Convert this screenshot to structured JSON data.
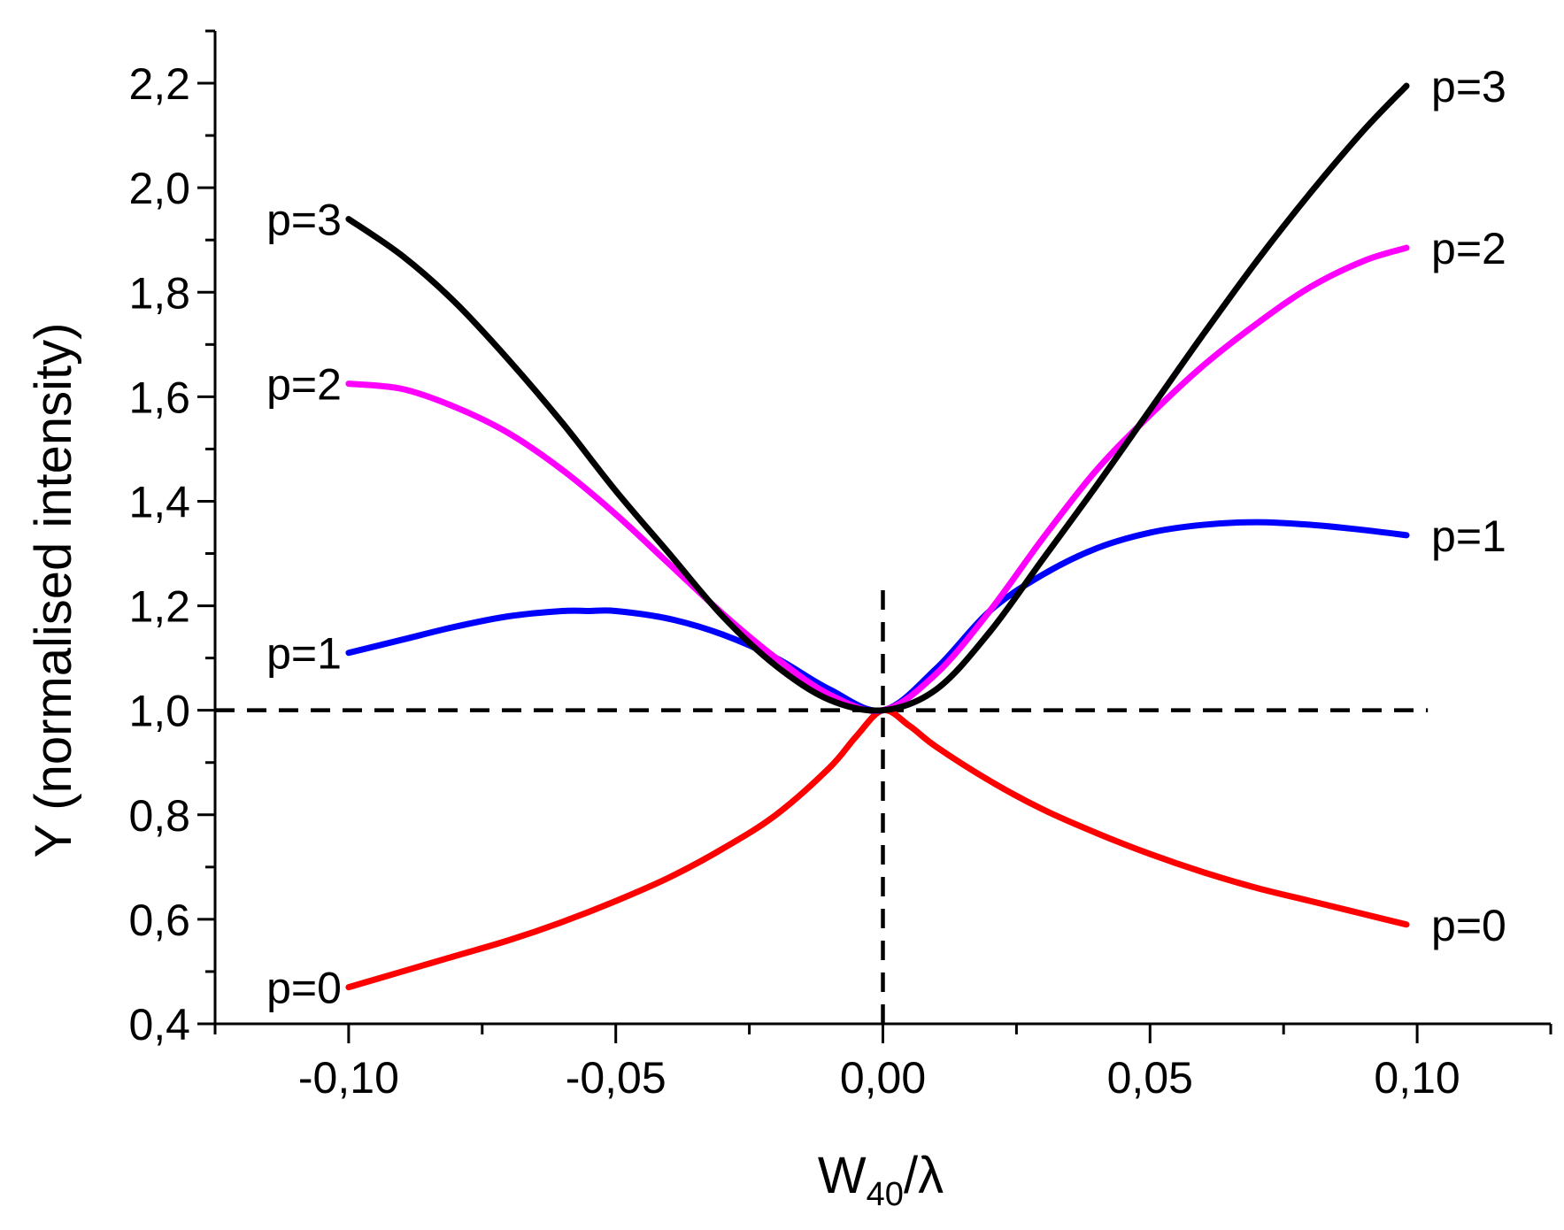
{
  "chart_data": {
    "type": "line",
    "xlabel": {
      "main": "W",
      "sub": "40",
      "rest": "/λ"
    },
    "ylabel": "Y (normalised intensity)",
    "xlim": [
      -0.125,
      0.125
    ],
    "ylim": [
      0.4,
      2.3
    ],
    "x_ticks": [
      -0.1,
      -0.05,
      0.0,
      0.05,
      0.1
    ],
    "x_tick_labels": [
      "-0,10",
      "-0,05",
      "0,00",
      "0,05",
      "0,10"
    ],
    "y_ticks": [
      0.4,
      0.6,
      0.8,
      1.0,
      1.2,
      1.4,
      1.6,
      1.8,
      2.0,
      2.2
    ],
    "y_tick_labels": [
      "0,4",
      "0,6",
      "0,8",
      "1,0",
      "1,2",
      "1,4",
      "1,6",
      "1,8",
      "2,0",
      "2,2"
    ],
    "grid": false,
    "reference_lines": [
      {
        "orientation": "horizontal",
        "value": 1.0,
        "style": "dashed",
        "from": -0.125,
        "to": 0.102
      },
      {
        "orientation": "vertical",
        "value": 0.0,
        "style": "dashed",
        "from": 0.4,
        "to": 1.23
      }
    ],
    "series": [
      {
        "name": "p=0",
        "color": "#ff0000",
        "x": [
          -0.1,
          -0.09,
          -0.08,
          -0.07,
          -0.06,
          -0.05,
          -0.04,
          -0.03,
          -0.02,
          -0.01,
          -0.005,
          0.0,
          0.005,
          0.01,
          0.02,
          0.03,
          0.04,
          0.05,
          0.06,
          0.07,
          0.08,
          0.09,
          0.098
        ],
        "y": [
          0.47,
          0.5,
          0.53,
          0.56,
          0.595,
          0.635,
          0.68,
          0.735,
          0.8,
          0.89,
          0.95,
          1.0,
          0.97,
          0.93,
          0.865,
          0.81,
          0.765,
          0.725,
          0.69,
          0.66,
          0.635,
          0.61,
          0.59
        ]
      },
      {
        "name": "p=1",
        "color": "#0000ff",
        "x": [
          -0.1,
          -0.09,
          -0.08,
          -0.07,
          -0.06,
          -0.055,
          -0.05,
          -0.04,
          -0.03,
          -0.02,
          -0.01,
          0.0,
          0.01,
          0.02,
          0.03,
          0.04,
          0.05,
          0.06,
          0.07,
          0.08,
          0.09,
          0.098
        ],
        "y": [
          1.11,
          1.135,
          1.16,
          1.18,
          1.19,
          1.19,
          1.19,
          1.175,
          1.145,
          1.1,
          1.04,
          1.0,
          1.08,
          1.19,
          1.26,
          1.31,
          1.34,
          1.355,
          1.36,
          1.355,
          1.345,
          1.335
        ]
      },
      {
        "name": "p=2",
        "color": "#ff00ff",
        "x": [
          -0.1,
          -0.09,
          -0.08,
          -0.07,
          -0.06,
          -0.05,
          -0.04,
          -0.03,
          -0.02,
          -0.01,
          0.0,
          0.01,
          0.02,
          0.03,
          0.04,
          0.05,
          0.06,
          0.07,
          0.08,
          0.09,
          0.098
        ],
        "y": [
          1.625,
          1.615,
          1.58,
          1.53,
          1.46,
          1.375,
          1.28,
          1.185,
          1.1,
          1.03,
          1.0,
          1.07,
          1.19,
          1.33,
          1.46,
          1.565,
          1.66,
          1.74,
          1.81,
          1.86,
          1.885
        ]
      },
      {
        "name": "p=3",
        "color": "#000000",
        "x": [
          -0.1,
          -0.09,
          -0.08,
          -0.07,
          -0.06,
          -0.05,
          -0.04,
          -0.03,
          -0.02,
          -0.01,
          0.0,
          0.01,
          0.02,
          0.03,
          0.04,
          0.05,
          0.06,
          0.07,
          0.08,
          0.09,
          0.098
        ],
        "y": [
          1.94,
          1.87,
          1.78,
          1.67,
          1.55,
          1.42,
          1.3,
          1.18,
          1.085,
          1.02,
          1.0,
          1.04,
          1.15,
          1.29,
          1.43,
          1.575,
          1.72,
          1.86,
          1.99,
          2.11,
          2.195
        ]
      }
    ]
  }
}
